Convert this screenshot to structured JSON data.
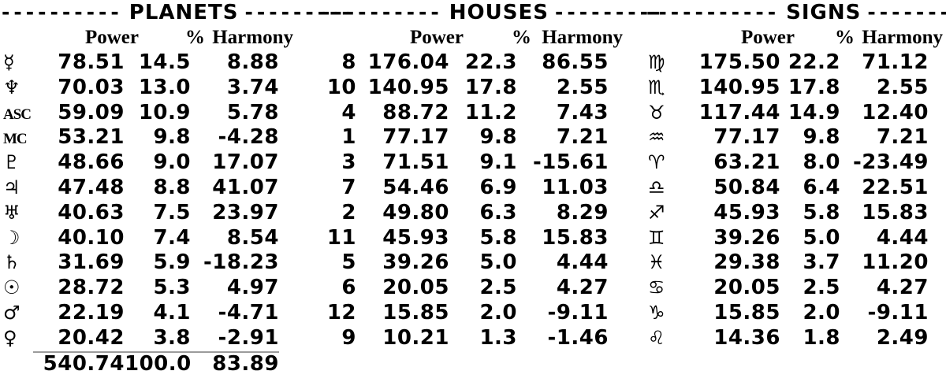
{
  "colors": {
    "background": "#ffffff",
    "text": "#000000",
    "underline": "#9b9b9b"
  },
  "tables": [
    {
      "title": "PLANETS",
      "dashes_left": "----------",
      "dashes_right": "---------",
      "columns": [
        "Power",
        "%",
        "Harmony"
      ],
      "rows": [
        {
          "name": "mercury",
          "kind": "planet",
          "symbol": "☿",
          "power": "78.51",
          "pct": "14.5",
          "harmony": "8.88"
        },
        {
          "name": "neptune",
          "kind": "planet",
          "symbol": "♆",
          "power": "70.03",
          "pct": "13.0",
          "harmony": "3.74"
        },
        {
          "name": "ascendant",
          "kind": "point",
          "symbol": "ASC",
          "power": "59.09",
          "pct": "10.9",
          "harmony": "5.78"
        },
        {
          "name": "midheaven",
          "kind": "point",
          "symbol": "MC",
          "power": "53.21",
          "pct": "9.8",
          "harmony": "-4.28"
        },
        {
          "name": "pluto",
          "kind": "planet",
          "symbol": "♇",
          "power": "48.66",
          "pct": "9.0",
          "harmony": "17.07"
        },
        {
          "name": "jupiter",
          "kind": "planet",
          "symbol": "♃",
          "power": "47.48",
          "pct": "8.8",
          "harmony": "41.07"
        },
        {
          "name": "uranus",
          "kind": "planet",
          "symbol": "♅",
          "power": "40.63",
          "pct": "7.5",
          "harmony": "23.97"
        },
        {
          "name": "moon",
          "kind": "planet",
          "symbol": "☽",
          "power": "40.10",
          "pct": "7.4",
          "harmony": "8.54"
        },
        {
          "name": "saturn",
          "kind": "planet",
          "symbol": "♄",
          "power": "31.69",
          "pct": "5.9",
          "harmony": "-18.23"
        },
        {
          "name": "sun",
          "kind": "planet",
          "symbol": "☉",
          "power": "28.72",
          "pct": "5.3",
          "harmony": "4.97"
        },
        {
          "name": "mars",
          "kind": "planet",
          "symbol": "♂",
          "power": "22.19",
          "pct": "4.1",
          "harmony": "-4.71"
        },
        {
          "name": "venus",
          "kind": "planet",
          "symbol": "♀",
          "power": "20.42",
          "pct": "3.8",
          "harmony": "-2.91"
        }
      ],
      "totals": {
        "power": "540.74",
        "pct": "100.0",
        "harmony": "83.89"
      }
    },
    {
      "title": "HOUSES",
      "dashes_left": "----------",
      "dashes_right": "---------",
      "columns": [
        "Power",
        "%",
        "Harmony"
      ],
      "rows": [
        {
          "name": "house-8",
          "kind": "house",
          "symbol": "8",
          "power": "176.04",
          "pct": "22.3",
          "harmony": "86.55"
        },
        {
          "name": "house-10",
          "kind": "house",
          "symbol": "10",
          "power": "140.95",
          "pct": "17.8",
          "harmony": "2.55"
        },
        {
          "name": "house-4",
          "kind": "house",
          "symbol": "4",
          "power": "88.72",
          "pct": "11.2",
          "harmony": "7.43"
        },
        {
          "name": "house-1",
          "kind": "house",
          "symbol": "1",
          "power": "77.17",
          "pct": "9.8",
          "harmony": "7.21"
        },
        {
          "name": "house-3",
          "kind": "house",
          "symbol": "3",
          "power": "71.51",
          "pct": "9.1",
          "harmony": "-15.61"
        },
        {
          "name": "house-7",
          "kind": "house",
          "symbol": "7",
          "power": "54.46",
          "pct": "6.9",
          "harmony": "11.03"
        },
        {
          "name": "house-2",
          "kind": "house",
          "symbol": "2",
          "power": "49.80",
          "pct": "6.3",
          "harmony": "8.29"
        },
        {
          "name": "house-11",
          "kind": "house",
          "symbol": "11",
          "power": "45.93",
          "pct": "5.8",
          "harmony": "15.83"
        },
        {
          "name": "house-5",
          "kind": "house",
          "symbol": "5",
          "power": "39.26",
          "pct": "5.0",
          "harmony": "4.44"
        },
        {
          "name": "house-6",
          "kind": "house",
          "symbol": "6",
          "power": "20.05",
          "pct": "2.5",
          "harmony": "4.27"
        },
        {
          "name": "house-12",
          "kind": "house",
          "symbol": "12",
          "power": "15.85",
          "pct": "2.0",
          "harmony": "-9.11"
        },
        {
          "name": "house-9",
          "kind": "house",
          "symbol": "9",
          "power": "10.21",
          "pct": "1.3",
          "harmony": "-1.46"
        }
      ]
    },
    {
      "title": "SIGNS",
      "dashes_left": "-----------",
      "dashes_right": "-----------",
      "columns": [
        "Power",
        "%",
        "Harmony"
      ],
      "rows": [
        {
          "name": "virgo",
          "kind": "sign",
          "symbol": "♍",
          "power": "175.50",
          "pct": "22.2",
          "harmony": "71.12"
        },
        {
          "name": "scorpio",
          "kind": "sign",
          "symbol": "♏",
          "power": "140.95",
          "pct": "17.8",
          "harmony": "2.55"
        },
        {
          "name": "taurus",
          "kind": "sign",
          "symbol": "♉",
          "power": "117.44",
          "pct": "14.9",
          "harmony": "12.40"
        },
        {
          "name": "aquarius",
          "kind": "sign",
          "symbol": "♒",
          "power": "77.17",
          "pct": "9.8",
          "harmony": "7.21"
        },
        {
          "name": "aries",
          "kind": "sign",
          "symbol": "♈",
          "power": "63.21",
          "pct": "8.0",
          "harmony": "-23.49"
        },
        {
          "name": "libra",
          "kind": "sign",
          "symbol": "♎",
          "power": "50.84",
          "pct": "6.4",
          "harmony": "22.51"
        },
        {
          "name": "sagittarius",
          "kind": "sign",
          "symbol": "♐",
          "power": "45.93",
          "pct": "5.8",
          "harmony": "15.83"
        },
        {
          "name": "gemini",
          "kind": "sign",
          "symbol": "♊",
          "power": "39.26",
          "pct": "5.0",
          "harmony": "4.44"
        },
        {
          "name": "pisces",
          "kind": "sign",
          "symbol": "♓",
          "power": "29.38",
          "pct": "3.7",
          "harmony": "11.20"
        },
        {
          "name": "cancer",
          "kind": "sign",
          "symbol": "♋",
          "power": "20.05",
          "pct": "2.5",
          "harmony": "4.27"
        },
        {
          "name": "capricorn",
          "kind": "sign",
          "symbol": "♑",
          "power": "15.85",
          "pct": "2.0",
          "harmony": "-9.11"
        },
        {
          "name": "leo",
          "kind": "sign",
          "symbol": "♌",
          "power": "14.36",
          "pct": "1.8",
          "harmony": "2.49"
        }
      ]
    }
  ]
}
